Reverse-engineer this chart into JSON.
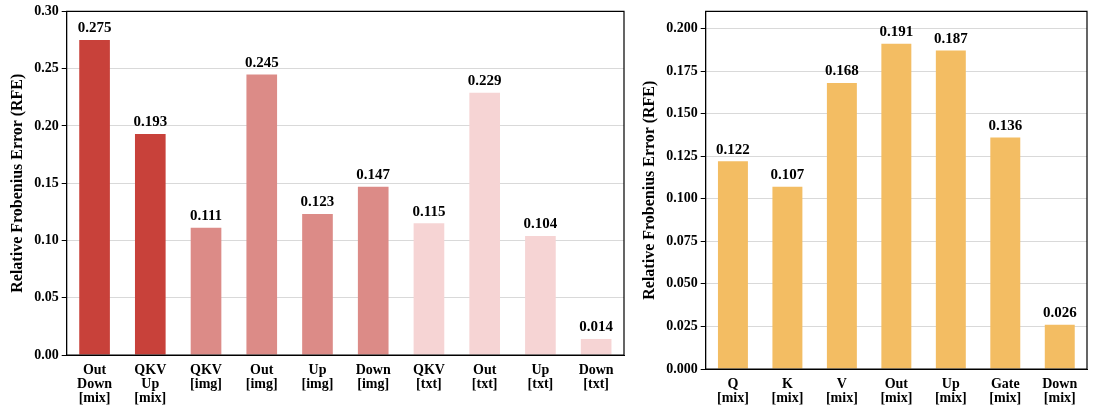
{
  "chart_data": [
    {
      "type": "bar",
      "ylabel": "Relative Frobenius Error (RFE)",
      "categories": [
        "Out\nDown\n[mix]",
        "QKV\nUp\n[mix]",
        "QKV\n[img]",
        "Out\n[img]",
        "Up\n[img]",
        "Down\n[img]",
        "QKV\n[txt]",
        "Out\n[txt]",
        "Up\n[txt]",
        "Down\n[txt]"
      ],
      "values": [
        0.275,
        0.193,
        0.111,
        0.245,
        0.123,
        0.147,
        0.115,
        0.229,
        0.104,
        0.014
      ],
      "colors": [
        "#c8413a",
        "#c8413a",
        "#dc8b87",
        "#dc8b87",
        "#dc8b87",
        "#dc8b87",
        "#f6d4d4",
        "#f6d4d4",
        "#f6d4d4",
        "#f6d4d4"
      ],
      "ylim": [
        0,
        0.3
      ],
      "yticks": [
        {
          "value": 0,
          "label": "0.00"
        },
        {
          "value": 0.05,
          "label": "0.05"
        },
        {
          "value": 0.1,
          "label": "0.10"
        },
        {
          "value": 0.15,
          "label": "0.15"
        },
        {
          "value": 0.2,
          "label": "0.20"
        },
        {
          "value": 0.25,
          "label": "0.25"
        },
        {
          "value": 0.3,
          "label": "0.30"
        }
      ],
      "grid": "y",
      "data_labels": true
    },
    {
      "type": "bar",
      "ylabel": "Relative Frobenius Error (RFE)",
      "categories": [
        "Q\n[mix]",
        "K\n[mix]",
        "V\n[mix]",
        "Out\n[mix]",
        "Up\n[mix]",
        "Gate\n[mix]",
        "Down\n[mix]"
      ],
      "values": [
        0.122,
        0.107,
        0.168,
        0.191,
        0.187,
        0.136,
        0.026
      ],
      "colors": [
        "#f3bd63",
        "#f3bd63",
        "#f3bd63",
        "#f3bd63",
        "#f3bd63",
        "#f3bd63",
        "#f3bd63"
      ],
      "ylim": [
        0,
        0.21
      ],
      "yticks": [
        {
          "value": 0,
          "label": "0.000"
        },
        {
          "value": 0.025,
          "label": "0.025"
        },
        {
          "value": 0.05,
          "label": "0.050"
        },
        {
          "value": 0.075,
          "label": "0.075"
        },
        {
          "value": 0.1,
          "label": "0.100"
        },
        {
          "value": 0.125,
          "label": "0.125"
        },
        {
          "value": 0.15,
          "label": "0.150"
        },
        {
          "value": 0.175,
          "label": "0.175"
        },
        {
          "value": 0.2,
          "label": "0.200"
        }
      ],
      "grid": "y",
      "data_labels": true
    }
  ]
}
